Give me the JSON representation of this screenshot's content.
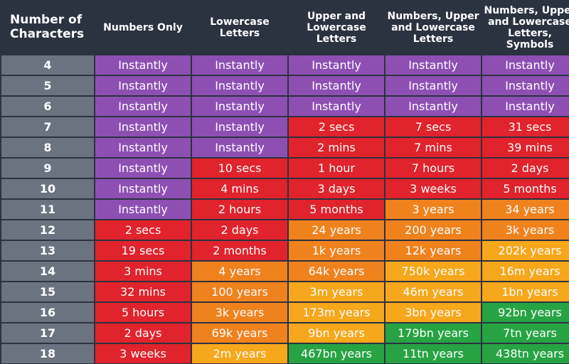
{
  "chart_data": {
    "type": "table",
    "headers": [
      "Number of Characters",
      "Numbers Only",
      "Lowercase Letters",
      "Upper and Lowercase Letters",
      "Numbers, Upper and Lowercase Letters",
      "Numbers, Upper and Lowercase Letters, Symbols"
    ],
    "header_lines": [
      [
        "Number of",
        "Characters"
      ],
      [
        "Numbers Only"
      ],
      [
        "Lowercase",
        "Letters"
      ],
      [
        "Upper and",
        "Lowercase",
        "Letters"
      ],
      [
        "Numbers, Upper",
        "and Lowercase",
        "Letters"
      ],
      [
        "Numbers, Upper",
        "and Lowercase",
        "Letters, Symbols"
      ]
    ],
    "rows": [
      {
        "chars": "4",
        "values": [
          "Instantly",
          "Instantly",
          "Instantly",
          "Instantly",
          "Instantly"
        ],
        "colors": [
          "purple",
          "purple",
          "purple",
          "purple",
          "purple"
        ]
      },
      {
        "chars": "5",
        "values": [
          "Instantly",
          "Instantly",
          "Instantly",
          "Instantly",
          "Instantly"
        ],
        "colors": [
          "purple",
          "purple",
          "purple",
          "purple",
          "purple"
        ]
      },
      {
        "chars": "6",
        "values": [
          "Instantly",
          "Instantly",
          "Instantly",
          "Instantly",
          "Instantly"
        ],
        "colors": [
          "purple",
          "purple",
          "purple",
          "purple",
          "purple"
        ]
      },
      {
        "chars": "7",
        "values": [
          "Instantly",
          "Instantly",
          "2 secs",
          "7 secs",
          "31 secs"
        ],
        "colors": [
          "purple",
          "purple",
          "red",
          "red",
          "red"
        ]
      },
      {
        "chars": "8",
        "values": [
          "Instantly",
          "Instantly",
          "2 mins",
          "7 mins",
          "39 mins"
        ],
        "colors": [
          "purple",
          "purple",
          "red",
          "red",
          "red"
        ]
      },
      {
        "chars": "9",
        "values": [
          "Instantly",
          "10 secs",
          "1 hour",
          "7 hours",
          "2 days"
        ],
        "colors": [
          "purple",
          "red",
          "red",
          "red",
          "red"
        ]
      },
      {
        "chars": "10",
        "values": [
          "Instantly",
          "4 mins",
          "3 days",
          "3 weeks",
          "5 months"
        ],
        "colors": [
          "purple",
          "red",
          "red",
          "red",
          "red"
        ]
      },
      {
        "chars": "11",
        "values": [
          "Instantly",
          "2 hours",
          "5 months",
          "3 years",
          "34 years"
        ],
        "colors": [
          "purple",
          "red",
          "red",
          "orange",
          "orange"
        ]
      },
      {
        "chars": "12",
        "values": [
          "2 secs",
          "2 days",
          "24 years",
          "200 years",
          "3k years"
        ],
        "colors": [
          "red",
          "red",
          "orange",
          "orange",
          "orange"
        ]
      },
      {
        "chars": "13",
        "values": [
          "19 secs",
          "2 months",
          "1k years",
          "12k years",
          "202k years"
        ],
        "colors": [
          "red",
          "red",
          "orange",
          "orange",
          "yellow"
        ]
      },
      {
        "chars": "14",
        "values": [
          "3 mins",
          "4 years",
          "64k years",
          "750k years",
          "16m years"
        ],
        "colors": [
          "red",
          "orange",
          "orange",
          "yellow",
          "yellow"
        ]
      },
      {
        "chars": "15",
        "values": [
          "32 mins",
          "100 years",
          "3m years",
          "46m years",
          "1bn years"
        ],
        "colors": [
          "red",
          "orange",
          "yellow",
          "yellow",
          "yellow"
        ]
      },
      {
        "chars": "16",
        "values": [
          "5 hours",
          "3k years",
          "173m years",
          "3bn years",
          "92bn years"
        ],
        "colors": [
          "red",
          "orange",
          "yellow",
          "yellow",
          "green"
        ]
      },
      {
        "chars": "17",
        "values": [
          "2 days",
          "69k years",
          "9bn years",
          "179bn years",
          "7tn years"
        ],
        "colors": [
          "red",
          "orange",
          "yellow",
          "green",
          "green"
        ]
      },
      {
        "chars": "18",
        "values": [
          "3 weeks",
          "2m years",
          "467bn years",
          "11tn years",
          "438tn years"
        ],
        "colors": [
          "red",
          "yellow",
          "green",
          "green",
          "green"
        ]
      }
    ]
  },
  "colors": {
    "background": "#2b3240",
    "row_header": "#6b7280",
    "purple": "#8e4fb3",
    "red": "#e0232c",
    "orange": "#f0821e",
    "yellow": "#f7a71b",
    "green": "#27a344"
  }
}
